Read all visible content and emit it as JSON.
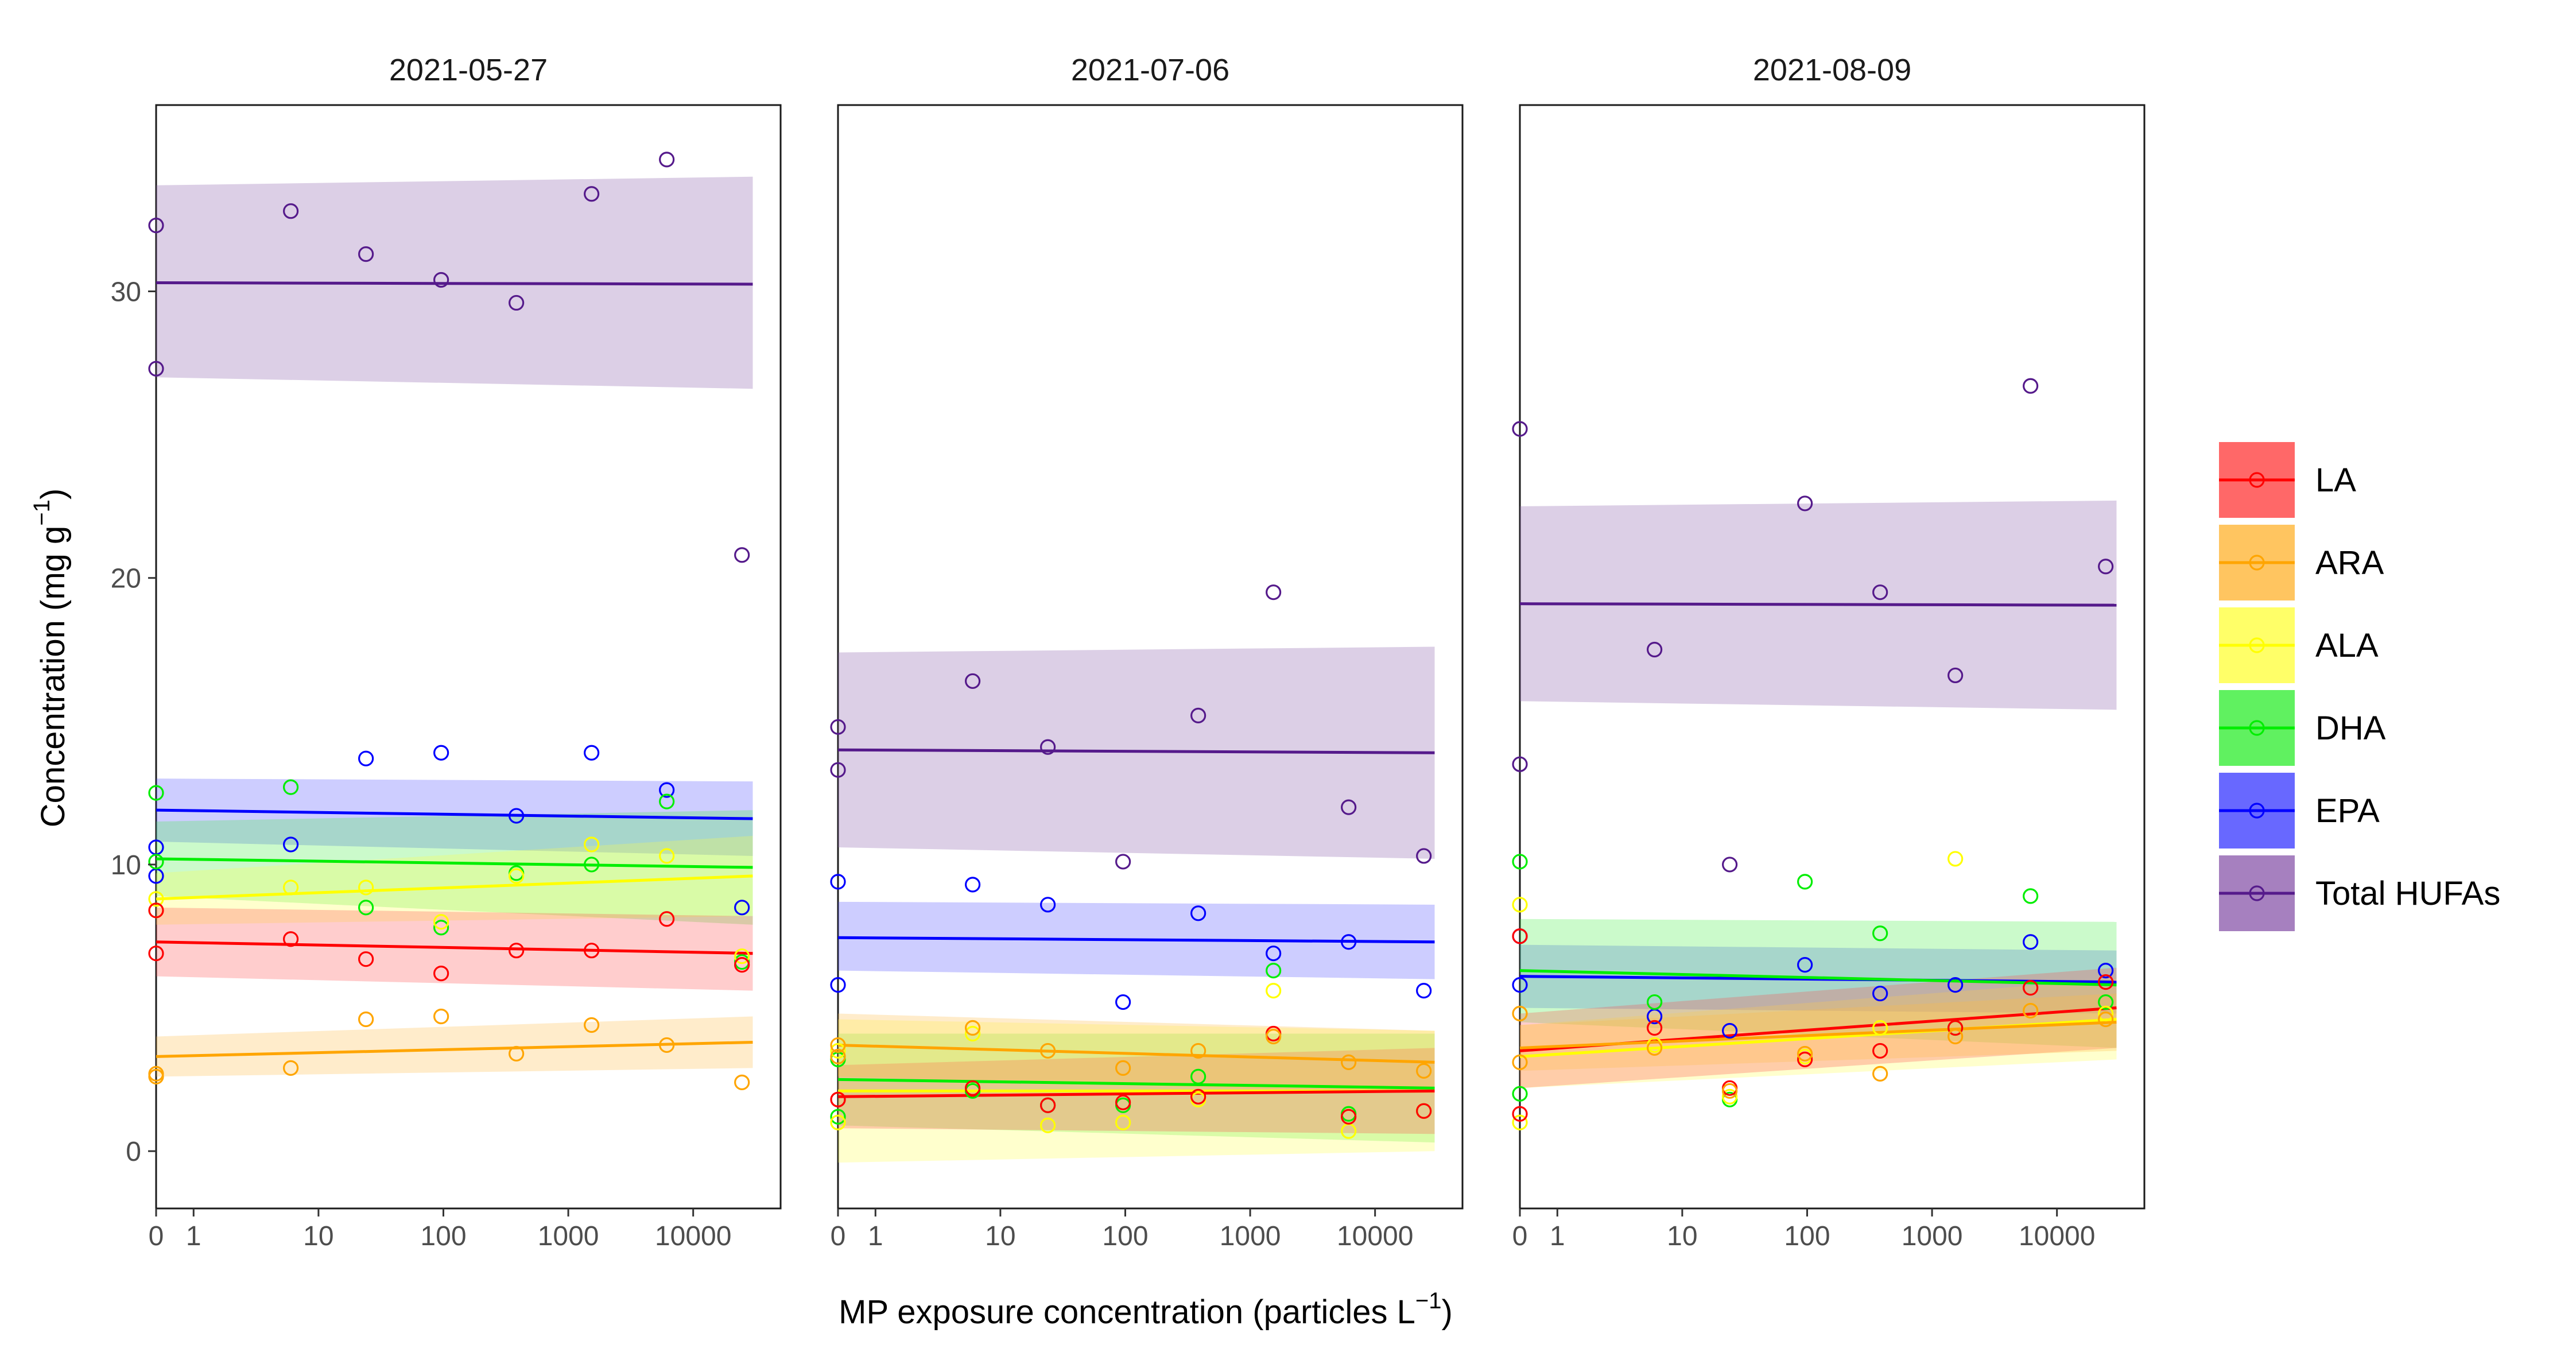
{
  "chart_data": {
    "type": "scatter",
    "xlabel": "MP exposure concentration (particles L",
    "xlabel_sup": "−1",
    "xlabel_end": ")",
    "ylabel": "Concentration (mg  g",
    "ylabel_sup": "−1",
    "ylabel_end": ")",
    "x_scale": "pseudo-log",
    "x_ticks": [
      0,
      1,
      10,
      100,
      1000,
      10000
    ],
    "x_tick_labels": [
      "0",
      "1",
      "10",
      "100",
      "1000",
      "10000"
    ],
    "y_ticks": [
      0,
      10,
      20,
      30
    ],
    "y_tick_labels": [
      "0",
      "10",
      "20",
      "30"
    ],
    "ylim": [
      -2,
      36.5
    ],
    "x_range_log": [
      -0.3,
      4.7
    ],
    "legend_position": "right",
    "series": [
      {
        "name": "LA",
        "color": "#ff0000",
        "fill": "#ff4d4d"
      },
      {
        "name": "ARA",
        "color": "#ffa500",
        "fill": "#ffbb44"
      },
      {
        "name": "ALA",
        "color": "#ffff00",
        "fill": "#ffff4d"
      },
      {
        "name": "DHA",
        "color": "#00ee00",
        "fill": "#44ee44"
      },
      {
        "name": "EPA",
        "color": "#0000ff",
        "fill": "#4d4dff"
      },
      {
        "name": "Total HUFAs",
        "color": "#551a8b",
        "fill": "#8855aa"
      }
    ],
    "panels": [
      {
        "title": "2021-05-27",
        "points": {
          "Total HUFAs": [
            [
              0,
              32.3
            ],
            [
              0,
              27.3
            ],
            [
              6,
              32.8
            ],
            [
              24,
              31.3
            ],
            [
              96,
              30.4
            ],
            [
              384,
              29.6
            ],
            [
              1536,
              33.4
            ],
            [
              6144,
              34.6
            ],
            [
              24576,
              20.8
            ]
          ],
          "EPA": [
            [
              0,
              10.6
            ],
            [
              0,
              9.6
            ],
            [
              6,
              10.7
            ],
            [
              24,
              13.7
            ],
            [
              96,
              13.9
            ],
            [
              384,
              11.7
            ],
            [
              1536,
              13.9
            ],
            [
              6144,
              12.6
            ],
            [
              24576,
              8.5
            ]
          ],
          "DHA": [
            [
              0,
              12.5
            ],
            [
              0,
              10.1
            ],
            [
              6,
              12.7
            ],
            [
              24,
              8.5
            ],
            [
              96,
              7.8
            ],
            [
              384,
              9.7
            ],
            [
              1536,
              10.0
            ],
            [
              6144,
              12.2
            ],
            [
              24576,
              6.6
            ]
          ],
          "ALA": [
            [
              0,
              8.8
            ],
            [
              0,
              8.4
            ],
            [
              6,
              9.2
            ],
            [
              24,
              9.2
            ],
            [
              96,
              8.0
            ],
            [
              384,
              9.6
            ],
            [
              1536,
              10.7
            ],
            [
              6144,
              10.3
            ],
            [
              24576,
              6.8
            ]
          ],
          "LA": [
            [
              0,
              6.9
            ],
            [
              0,
              8.4
            ],
            [
              6,
              7.4
            ],
            [
              24,
              6.7
            ],
            [
              96,
              6.2
            ],
            [
              384,
              7.0
            ],
            [
              1536,
              7.0
            ],
            [
              6144,
              8.1
            ],
            [
              24576,
              6.5
            ]
          ],
          "ARA": [
            [
              0,
              2.7
            ],
            [
              0,
              2.6
            ],
            [
              6,
              2.9
            ],
            [
              24,
              4.6
            ],
            [
              96,
              4.7
            ],
            [
              384,
              3.4
            ],
            [
              1536,
              4.4
            ],
            [
              6144,
              3.7
            ],
            [
              24576,
              2.4
            ]
          ]
        },
        "fits": {
          "Total HUFAs": {
            "start": 30.3,
            "end": 30.25,
            "lo0": 27.0,
            "lo1": 26.6,
            "hi0": 33.7,
            "hi1": 34.0
          },
          "EPA": {
            "start": 11.9,
            "end": 11.6,
            "lo0": 10.8,
            "lo1": 10.3,
            "hi0": 13.0,
            "hi1": 12.9
          },
          "DHA": {
            "start": 10.2,
            "end": 9.9,
            "lo0": 8.9,
            "lo1": 7.9,
            "hi0": 11.5,
            "hi1": 11.9
          },
          "ALA": {
            "start": 8.8,
            "end": 9.6,
            "lo0": 7.9,
            "lo1": 8.2,
            "hi0": 9.7,
            "hi1": 11.0
          },
          "LA": {
            "start": 7.3,
            "end": 6.9,
            "lo0": 6.1,
            "lo1": 5.6,
            "hi0": 8.5,
            "hi1": 8.2
          },
          "ARA": {
            "start": 3.3,
            "end": 3.8,
            "lo0": 2.6,
            "lo1": 2.9,
            "hi0": 4.0,
            "hi1": 4.7
          }
        }
      },
      {
        "title": "2021-07-06",
        "points": {
          "Total HUFAs": [
            [
              0,
              14.8
            ],
            [
              0,
              13.3
            ],
            [
              6,
              16.4
            ],
            [
              24,
              14.1
            ],
            [
              96,
              10.1
            ],
            [
              384,
              15.2
            ],
            [
              1536,
              19.5
            ],
            [
              6144,
              12.0
            ],
            [
              24576,
              10.3
            ]
          ],
          "EPA": [
            [
              0,
              9.4
            ],
            [
              0,
              5.8
            ],
            [
              6,
              9.3
            ],
            [
              24,
              8.6
            ],
            [
              96,
              5.2
            ],
            [
              384,
              8.3
            ],
            [
              1536,
              6.9
            ],
            [
              6144,
              7.3
            ],
            [
              24576,
              5.6
            ]
          ],
          "DHA": [
            [
              0,
              3.2
            ],
            [
              0,
              1.2
            ],
            [
              6,
              2.1
            ],
            [
              24,
              1.6
            ],
            [
              96,
              1.6
            ],
            [
              384,
              2.6
            ],
            [
              1536,
              6.3
            ],
            [
              6144,
              1.3
            ],
            [
              24576,
              1.4
            ]
          ],
          "ALA": [
            [
              0,
              3.5
            ],
            [
              0,
              1.0
            ],
            [
              6,
              4.1
            ],
            [
              24,
              0.9
            ],
            [
              96,
              1.0
            ],
            [
              384,
              1.8
            ],
            [
              1536,
              5.6
            ],
            [
              6144,
              0.7
            ],
            [
              24576,
              1.4
            ]
          ],
          "LA": [
            [
              0,
              1.8
            ],
            [
              0,
              1.8
            ],
            [
              6,
              2.2
            ],
            [
              24,
              1.6
            ],
            [
              96,
              1.7
            ],
            [
              384,
              1.9
            ],
            [
              1536,
              4.1
            ],
            [
              6144,
              1.2
            ],
            [
              24576,
              1.4
            ]
          ],
          "ARA": [
            [
              0,
              3.7
            ],
            [
              0,
              3.3
            ],
            [
              6,
              4.3
            ],
            [
              24,
              3.5
            ],
            [
              96,
              2.9
            ],
            [
              384,
              3.5
            ],
            [
              1536,
              4.0
            ],
            [
              6144,
              3.1
            ],
            [
              24576,
              2.8
            ]
          ]
        },
        "fits": {
          "Total HUFAs": {
            "start": 14.0,
            "end": 13.9,
            "lo0": 10.6,
            "lo1": 10.2,
            "hi0": 17.4,
            "hi1": 17.6
          },
          "EPA": {
            "start": 7.45,
            "end": 7.3,
            "lo0": 6.3,
            "lo1": 6.0,
            "hi0": 8.7,
            "hi1": 8.6
          },
          "DHA": {
            "start": 2.5,
            "end": 2.2,
            "lo0": 0.9,
            "lo1": 0.3,
            "hi0": 4.1,
            "hi1": 4.1
          },
          "ALA": {
            "start": 2.1,
            "end": 2.1,
            "lo0": -0.4,
            "lo1": 0.0,
            "hi0": 4.6,
            "hi1": 4.2
          },
          "LA": {
            "start": 1.9,
            "end": 2.1,
            "lo0": 0.8,
            "lo1": 0.6,
            "hi0": 3.0,
            "hi1": 3.6
          },
          "ARA": {
            "start": 3.7,
            "end": 3.1,
            "lo0": 2.6,
            "lo1": 2.0,
            "hi0": 4.8,
            "hi1": 4.2
          }
        }
      },
      {
        "title": "2021-08-09",
        "points": {
          "Total HUFAs": [
            [
              0,
              25.2
            ],
            [
              0,
              13.5
            ],
            [
              6,
              17.5
            ],
            [
              24,
              10.0
            ],
            [
              96,
              22.6
            ],
            [
              384,
              19.5
            ],
            [
              1536,
              16.6
            ],
            [
              6144,
              26.7
            ],
            [
              24576,
              20.4
            ]
          ],
          "EPA": [
            [
              0,
              7.5
            ],
            [
              0,
              5.8
            ],
            [
              6,
              4.7
            ],
            [
              24,
              4.2
            ],
            [
              96,
              6.5
            ],
            [
              384,
              5.5
            ],
            [
              1536,
              5.8
            ],
            [
              6144,
              7.3
            ],
            [
              24576,
              6.3
            ]
          ],
          "DHA": [
            [
              0,
              10.1
            ],
            [
              0,
              2.0
            ],
            [
              6,
              5.2
            ],
            [
              24,
              1.8
            ],
            [
              96,
              9.4
            ],
            [
              384,
              7.6
            ],
            [
              1536,
              4.3
            ],
            [
              6144,
              8.9
            ],
            [
              24576,
              5.2
            ]
          ],
          "ALA": [
            [
              0,
              8.6
            ],
            [
              0,
              1.0
            ],
            [
              6,
              3.7
            ],
            [
              24,
              1.9
            ],
            [
              96,
              3.3
            ],
            [
              384,
              4.3
            ],
            [
              1536,
              10.2
            ],
            [
              6144,
              4.9
            ],
            [
              24576,
              4.8
            ]
          ],
          "LA": [
            [
              0,
              7.5
            ],
            [
              0,
              1.3
            ],
            [
              6,
              4.3
            ],
            [
              24,
              2.2
            ],
            [
              96,
              3.2
            ],
            [
              384,
              3.5
            ],
            [
              1536,
              4.3
            ],
            [
              6144,
              5.7
            ],
            [
              24576,
              5.9
            ]
          ],
          "ARA": [
            [
              0,
              4.8
            ],
            [
              0,
              3.1
            ],
            [
              6,
              3.6
            ],
            [
              24,
              2.1
            ],
            [
              96,
              3.4
            ],
            [
              384,
              2.7
            ],
            [
              1536,
              4.0
            ],
            [
              6144,
              4.9
            ],
            [
              24576,
              4.6
            ]
          ]
        },
        "fits": {
          "Total HUFAs": {
            "start": 19.1,
            "end": 19.05,
            "lo0": 15.7,
            "lo1": 15.4,
            "hi0": 22.5,
            "hi1": 22.7
          },
          "EPA": {
            "start": 6.1,
            "end": 5.9,
            "lo0": 5.0,
            "lo1": 4.8,
            "hi0": 7.2,
            "hi1": 7.0
          },
          "DHA": {
            "start": 6.3,
            "end": 5.8,
            "lo0": 4.5,
            "lo1": 3.6,
            "hi0": 8.1,
            "hi1": 8.0
          },
          "ALA": {
            "start": 3.3,
            "end": 4.6,
            "lo0": 2.2,
            "lo1": 3.2,
            "hi0": 4.4,
            "hi1": 6.0
          },
          "LA": {
            "start": 3.5,
            "end": 5.0,
            "lo0": 2.2,
            "lo1": 3.6,
            "hi0": 4.8,
            "hi1": 6.4
          },
          "ARA": {
            "start": 3.6,
            "end": 4.5,
            "lo0": 2.8,
            "lo1": 3.5,
            "hi0": 4.4,
            "hi1": 5.5
          }
        }
      }
    ]
  }
}
